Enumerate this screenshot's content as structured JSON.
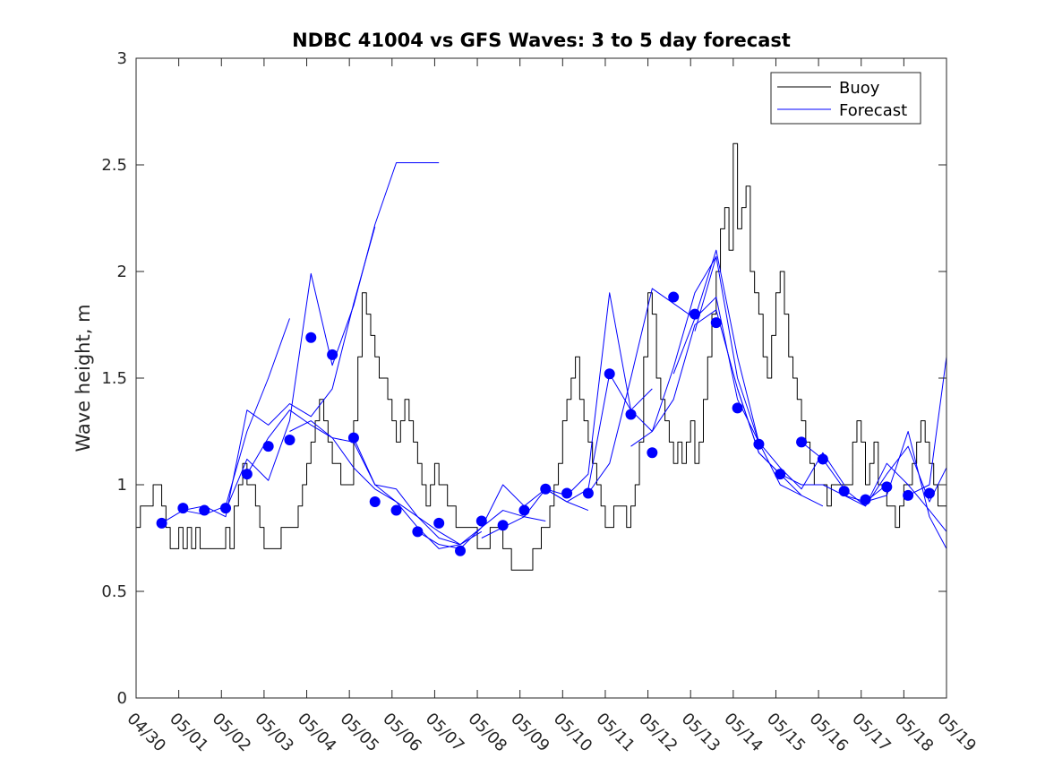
{
  "chart_data": {
    "type": "line",
    "title": "NDBC 41004 vs GFS Waves: 3 to 5 day forecast",
    "xlabel": "",
    "ylabel": "Wave height, m",
    "x_tick_labels": [
      "04/30",
      "05/01",
      "05/02",
      "05/03",
      "05/04",
      "05/05",
      "05/06",
      "05/07",
      "05/08",
      "05/09",
      "05/10",
      "05/11",
      "05/12",
      "05/13",
      "05/14",
      "05/15",
      "05/16",
      "05/17",
      "05/18",
      "05/19"
    ],
    "y_tick_labels": [
      "0",
      "0.5",
      "1",
      "1.5",
      "2",
      "2.5",
      "3"
    ],
    "xlim": [
      "04/30",
      "05/19"
    ],
    "ylim": [
      0,
      3
    ],
    "grid": false,
    "legend": {
      "position": "top-right",
      "entries": [
        "Buoy",
        "Forecast"
      ]
    },
    "colors": {
      "buoy": "#000000",
      "forecast": "#0000ff",
      "markers": "#0000ff"
    },
    "series": [
      {
        "name": "Buoy",
        "style": "line",
        "x": [
          0,
          0.1,
          0.2,
          0.3,
          0.4,
          0.5,
          0.6,
          0.7,
          0.8,
          0.9,
          1,
          1.1,
          1.2,
          1.3,
          1.4,
          1.5,
          1.6,
          1.7,
          1.8,
          1.9,
          2,
          2.1,
          2.2,
          2.3,
          2.4,
          2.5,
          2.6,
          2.7,
          2.8,
          2.9,
          3,
          3.1,
          3.2,
          3.3,
          3.4,
          3.5,
          3.6,
          3.7,
          3.8,
          3.9,
          4,
          4.1,
          4.2,
          4.3,
          4.4,
          4.5,
          4.6,
          4.7,
          4.8,
          4.9,
          5,
          5.1,
          5.2,
          5.3,
          5.4,
          5.5,
          5.6,
          5.7,
          5.8,
          5.9,
          6,
          6.1,
          6.2,
          6.3,
          6.4,
          6.5,
          6.6,
          6.7,
          6.8,
          6.9,
          7,
          7.1,
          7.2,
          7.3,
          7.4,
          7.5,
          7.6,
          7.7,
          7.8,
          7.9,
          8,
          8.1,
          8.2,
          8.3,
          8.4,
          8.5,
          8.6,
          8.7,
          8.8,
          8.9,
          9,
          9.1,
          9.2,
          9.3,
          9.4,
          9.5,
          9.6,
          9.7,
          9.8,
          9.9,
          10,
          10.1,
          10.2,
          10.3,
          10.4,
          10.5,
          10.6,
          10.7,
          10.8,
          10.9,
          11,
          11.1,
          11.2,
          11.3,
          11.4,
          11.5,
          11.6,
          11.7,
          11.8,
          11.9,
          12,
          12.1,
          12.2,
          12.3,
          12.4,
          12.5,
          12.6,
          12.7,
          12.8,
          12.9,
          13,
          13.1,
          13.2,
          13.3,
          13.4,
          13.5,
          13.6,
          13.7,
          13.8,
          13.9,
          14,
          14.1,
          14.2,
          14.3,
          14.4,
          14.5,
          14.6,
          14.7,
          14.8,
          14.9,
          15,
          15.1,
          15.2,
          15.3,
          15.4,
          15.5,
          15.6,
          15.7,
          15.8,
          15.9,
          16,
          16.1,
          16.2,
          16.3,
          16.4,
          16.5,
          16.6,
          16.7,
          16.8,
          16.9,
          17,
          17.1,
          17.2,
          17.3,
          17.4,
          17.5,
          17.6,
          17.7,
          17.8,
          17.9,
          18,
          18.1,
          18.2,
          18.3,
          18.4,
          18.5,
          18.6,
          18.7,
          18.8,
          18.9,
          19
        ],
        "values": [
          0.8,
          0.9,
          0.9,
          0.9,
          1.0,
          1.0,
          0.9,
          0.8,
          0.7,
          0.7,
          0.8,
          0.7,
          0.8,
          0.7,
          0.8,
          0.7,
          0.7,
          0.7,
          0.7,
          0.7,
          0.7,
          0.8,
          0.7,
          0.9,
          1.0,
          1.1,
          1.0,
          1.0,
          0.9,
          0.8,
          0.7,
          0.7,
          0.7,
          0.7,
          0.8,
          0.8,
          0.8,
          0.8,
          0.9,
          1.0,
          1.1,
          1.2,
          1.3,
          1.4,
          1.3,
          1.2,
          1.1,
          1.1,
          1.0,
          1.0,
          1.0,
          1.3,
          1.6,
          1.9,
          1.8,
          1.7,
          1.6,
          1.5,
          1.5,
          1.4,
          1.3,
          1.2,
          1.3,
          1.4,
          1.3,
          1.2,
          1.1,
          1.0,
          0.9,
          1.0,
          1.1,
          1.0,
          1.0,
          0.9,
          0.9,
          0.8,
          0.8,
          0.8,
          0.8,
          0.8,
          0.7,
          0.7,
          0.7,
          0.8,
          0.8,
          0.8,
          0.7,
          0.7,
          0.6,
          0.6,
          0.6,
          0.6,
          0.6,
          0.7,
          0.7,
          0.8,
          0.8,
          0.9,
          1.0,
          1.1,
          1.3,
          1.4,
          1.5,
          1.6,
          1.4,
          1.3,
          1.2,
          1.1,
          1.0,
          0.9,
          0.8,
          0.8,
          0.9,
          0.9,
          0.9,
          0.8,
          0.9,
          1.0,
          1.2,
          1.6,
          1.9,
          1.8,
          1.5,
          1.4,
          1.3,
          1.2,
          1.1,
          1.2,
          1.1,
          1.2,
          1.3,
          1.1,
          1.2,
          1.4,
          1.6,
          1.8,
          2.0,
          2.2,
          2.3,
          2.1,
          2.6,
          2.2,
          2.3,
          2.4,
          2.0,
          1.9,
          1.8,
          1.6,
          1.5,
          1.7,
          1.9,
          2.0,
          1.8,
          1.6,
          1.5,
          1.4,
          1.3,
          1.2,
          1.1,
          1.0,
          1.0,
          1.0,
          0.9,
          1.0,
          1.0,
          1.0,
          1.0,
          1.0,
          1.2,
          1.3,
          1.2,
          1.0,
          1.1,
          1.2,
          1.0,
          1.0,
          0.9,
          0.9,
          0.8,
          0.9,
          1.0,
          1.0,
          1.1,
          1.2,
          1.3,
          1.2,
          1.1,
          1.0,
          0.9,
          0.9,
          0.8
        ]
      },
      {
        "name": "Forecast",
        "style": "line",
        "x": [
          0.6,
          1.1,
          1.6,
          2.1,
          2.6,
          3.1,
          3.6
        ],
        "values": [
          0.82,
          0.88,
          0.86,
          0.9,
          1.25,
          1.5,
          1.78
        ]
      },
      {
        "style": "line",
        "x": [
          1.1,
          1.6,
          2.1,
          2.6,
          3.1,
          3.6,
          4.1,
          4.6,
          5.1,
          5.6
        ],
        "values": [
          0.88,
          0.9,
          0.85,
          1.35,
          1.28,
          1.38,
          1.32,
          1.45,
          1.85,
          2.21
        ]
      },
      {
        "style": "line",
        "x": [
          2.1,
          2.6,
          3.1,
          3.6,
          4.1,
          4.6,
          5.1,
          5.6,
          6.1,
          6.6,
          7.1
        ],
        "values": [
          0.88,
          1.12,
          1.02,
          1.3,
          1.99,
          1.56,
          1.84,
          2.22,
          2.51,
          2.51,
          2.51
        ]
      },
      {
        "style": "line",
        "x": [
          2.6,
          3.1,
          3.6,
          4.1,
          4.6,
          5.1,
          5.6,
          6.1,
          6.6,
          7.1,
          7.6
        ],
        "values": [
          1.05,
          1.22,
          1.35,
          1.28,
          1.22,
          1.2,
          1.0,
          0.98,
          0.85,
          0.75,
          0.72
        ]
      },
      {
        "style": "line",
        "x": [
          3.6,
          4.1,
          4.6,
          5.1,
          5.6,
          6.1,
          6.6,
          7.1,
          7.6,
          8.1
        ],
        "values": [
          1.25,
          1.3,
          1.22,
          1.08,
          0.98,
          0.92,
          0.8,
          0.7,
          0.72,
          0.78
        ]
      },
      {
        "style": "line",
        "x": [
          5.1,
          5.6,
          6.1,
          6.6,
          7.1,
          7.6,
          8.1,
          8.6,
          9.1,
          9.6
        ],
        "values": [
          1.22,
          1.0,
          0.92,
          0.85,
          0.78,
          0.72,
          0.8,
          0.88,
          0.85,
          0.83
        ]
      },
      {
        "style": "line",
        "x": [
          6.6,
          7.1,
          7.6,
          8.1,
          8.6,
          9.1,
          9.6,
          10.1,
          10.6
        ],
        "values": [
          0.78,
          0.72,
          0.7,
          0.8,
          1.0,
          0.9,
          0.98,
          0.92,
          0.88
        ]
      },
      {
        "style": "line",
        "x": [
          8.1,
          8.6,
          9.1,
          9.6,
          10.1,
          10.6,
          11.1,
          11.6,
          12.1
        ],
        "values": [
          0.75,
          0.8,
          0.85,
          0.98,
          0.95,
          1.05,
          1.9,
          1.35,
          1.45
        ]
      },
      {
        "style": "line",
        "x": [
          9.6,
          10.1,
          10.6,
          11.1,
          11.6,
          12.1,
          12.6,
          13.1,
          13.6
        ],
        "values": [
          0.98,
          0.92,
          0.98,
          1.52,
          1.35,
          1.25,
          1.55,
          1.9,
          2.07
        ]
      },
      {
        "style": "line",
        "x": [
          10.6,
          11.1,
          11.6,
          12.1,
          12.6,
          13.1,
          13.6,
          14.1,
          14.6
        ],
        "values": [
          0.96,
          1.1,
          1.5,
          1.92,
          1.85,
          1.78,
          2.1,
          1.6,
          1.2
        ]
      },
      {
        "style": "line",
        "x": [
          11.6,
          12.1,
          12.6,
          13.1,
          13.6,
          14.1,
          14.6,
          15.1,
          15.6
        ],
        "values": [
          1.18,
          1.25,
          1.4,
          1.75,
          1.82,
          1.45,
          1.15,
          1.05,
          0.95
        ]
      },
      {
        "style": "line",
        "x": [
          12.6,
          13.1,
          13.6,
          14.1,
          14.6,
          15.1,
          15.6,
          16.1
        ],
        "values": [
          1.52,
          1.78,
          1.88,
          1.4,
          1.2,
          1.0,
          0.95,
          0.9
        ]
      },
      {
        "style": "line",
        "x": [
          13.1,
          13.6,
          14.1,
          14.6,
          15.1,
          15.6,
          16.1,
          16.6
        ],
        "values": [
          1.72,
          2.07,
          1.5,
          1.2,
          1.08,
          0.98,
          1.15,
          1.0
        ]
      },
      {
        "style": "line",
        "x": [
          14.1,
          14.6,
          15.1,
          15.6,
          16.1,
          16.6,
          17.1,
          17.6
        ],
        "values": [
          1.45,
          1.15,
          1.05,
          1.0,
          1.0,
          0.95,
          0.92,
          1.0
        ]
      },
      {
        "style": "line",
        "x": [
          15.6,
          16.1,
          16.6,
          17.1,
          17.6,
          18.1,
          18.6,
          19.0
        ],
        "values": [
          1.2,
          1.12,
          0.98,
          0.9,
          1.1,
          1.0,
          0.88,
          0.78
        ]
      },
      {
        "style": "line",
        "x": [
          16.6,
          17.1,
          17.6,
          18.1,
          18.6,
          19.0
        ],
        "values": [
          0.95,
          0.9,
          1.05,
          1.18,
          0.92,
          1.08
        ]
      },
      {
        "style": "line",
        "x": [
          17.1,
          17.6,
          18.1,
          18.6,
          19.0
        ],
        "values": [
          0.92,
          0.95,
          1.25,
          0.85,
          0.7
        ]
      },
      {
        "style": "line",
        "x": [
          18.1,
          18.6,
          19.0
        ],
        "values": [
          0.95,
          1.0,
          1.6
        ]
      },
      {
        "style": "markers",
        "x": [
          0.6,
          1.1,
          1.6,
          2.1,
          2.6,
          3.1,
          3.6,
          4.1,
          4.6,
          5.1,
          5.6,
          6.1,
          6.6,
          7.1,
          7.6,
          8.1,
          8.6,
          9.1,
          9.6,
          10.1,
          10.6,
          11.1,
          11.6,
          12.1,
          12.6,
          13.1,
          13.6,
          14.1,
          14.6,
          15.1,
          15.6,
          16.1,
          16.6,
          17.1,
          17.6,
          18.1,
          18.6
        ],
        "values": [
          0.82,
          0.89,
          0.88,
          0.89,
          1.05,
          1.18,
          1.21,
          1.69,
          1.61,
          1.22,
          0.92,
          0.88,
          0.78,
          0.82,
          0.69,
          0.83,
          0.81,
          0.88,
          0.98,
          0.96,
          0.96,
          1.52,
          1.33,
          1.15,
          1.88,
          1.8,
          1.76,
          1.36,
          1.19,
          1.05,
          1.2,
          1.12,
          0.97,
          0.93,
          0.99,
          0.95,
          0.96
        ]
      }
    ]
  }
}
